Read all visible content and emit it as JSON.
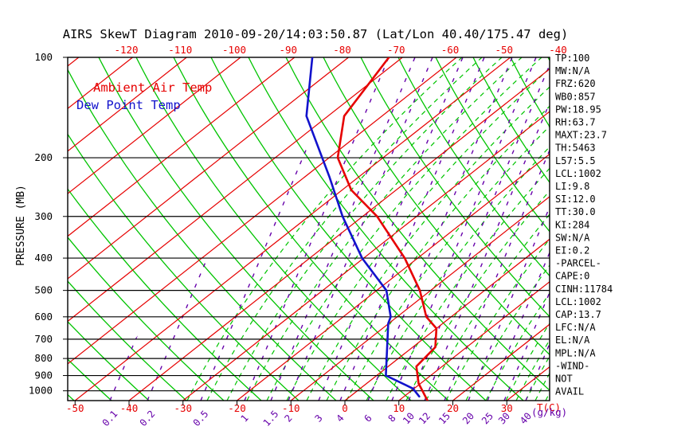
{
  "title": "AIRS SkewT Diagram 2010-09-20/14:03:50.87 (Lat/Lon 40.40/175.47 deg)",
  "legend": {
    "ambient_label": "Ambient Air Temp",
    "dewpoint_label": "Dew Point Temp"
  },
  "axes": {
    "pressure_label": "PRESSURE (MB)",
    "pressure_ticks": [
      100,
      200,
      300,
      400,
      500,
      600,
      700,
      800,
      900,
      1000
    ],
    "temp_unit_label": "T(C)",
    "mixing_unit_label": "(g/kg)",
    "top_temp_ticks": [
      -120,
      -110,
      -100,
      -90,
      -80,
      -70,
      -60,
      -50,
      -40
    ],
    "bottom_temp_ticks": [
      -50,
      -40,
      -30,
      -20,
      -10,
      0,
      10,
      20,
      30
    ],
    "mixing_ratio_ticks": [
      0.1,
      0.2,
      0.5,
      1,
      1.5,
      2,
      3,
      4,
      6,
      8,
      10,
      12,
      15,
      20,
      25,
      30,
      40
    ]
  },
  "stats": [
    "TP:100",
    "MW:N/A",
    "FRZ:620",
    "WB0:857",
    "PW:18.95",
    "RH:63.7",
    "MAXT:23.7",
    "TH:5463",
    "L57:5.5",
    "LCL:1002",
    "LI:9.8",
    "SI:12.0",
    "TT:30.0",
    "KI:284",
    "SW:N/A",
    "EI:0.2",
    "-PARCEL-",
    "CAPE:0",
    "CINH:11784",
    "LCL:1002",
    "CAP:13.7",
    "LFC:N/A",
    "EL:N/A",
    "MPL:N/A",
    "-WIND-",
    "NOT",
    "AVAIL"
  ],
  "colors": {
    "isotherm_red": "#e60000",
    "adiabat_green": "#00c400",
    "mixing_purple": "#6600aa",
    "ambient_red": "#e60000",
    "dewpoint_blue": "#1212cc",
    "axis_black": "#000000",
    "background": "#ffffff"
  },
  "chart_data": {
    "type": "line",
    "title": "AIRS SkewT Diagram 2010-09-20/14:03:50.87 (Lat/Lon 40.40/175.47 deg)",
    "projection": "skew-T log-P",
    "y_axis": {
      "label": "PRESSURE (MB)",
      "scale": "log",
      "range": [
        100,
        1070
      ],
      "ticks": [
        100,
        200,
        300,
        400,
        500,
        600,
        700,
        800,
        900,
        1000
      ]
    },
    "x_axis": {
      "label": "T(C)",
      "top_ticks": [
        -120,
        -110,
        -100,
        -90,
        -80,
        -70,
        -60,
        -50,
        -40
      ],
      "bottom_ticks": [
        -50,
        -40,
        -30,
        -20,
        -10,
        0,
        10,
        20,
        30
      ]
    },
    "mixing_ratio_lines_gkg": [
      0.1,
      0.2,
      0.5,
      1,
      1.5,
      2,
      3,
      4,
      6,
      8,
      10,
      12,
      15,
      20,
      25,
      30,
      40
    ],
    "isotherm_step_c": 10,
    "series": [
      {
        "name": "Ambient Air Temp",
        "color": "#e60000",
        "units": [
          "hPa",
          "degC"
        ],
        "points": [
          [
            100,
            -72.5
          ],
          [
            150,
            -67.0
          ],
          [
            200,
            -58.4
          ],
          [
            250,
            -48.3
          ],
          [
            300,
            -37.3
          ],
          [
            400,
            -22.4
          ],
          [
            500,
            -12.0
          ],
          [
            600,
            -4.6
          ],
          [
            650,
            0.0
          ],
          [
            740,
            4.2
          ],
          [
            845,
            5.2
          ],
          [
            950,
            9.6
          ],
          [
            1070,
            15.3
          ]
        ]
      },
      {
        "name": "Dew Point Temp",
        "color": "#1212cc",
        "units": [
          "hPa",
          "degC"
        ],
        "points": [
          [
            100,
            -86.7
          ],
          [
            150,
            -74.0
          ],
          [
            228,
            -55.5
          ],
          [
            300,
            -43.7
          ],
          [
            400,
            -30.3
          ],
          [
            500,
            -18.2
          ],
          [
            600,
            -11.2
          ],
          [
            628,
            -10.1
          ],
          [
            900,
            1.7
          ],
          [
            985,
            9.8
          ],
          [
            1040,
            12.8
          ]
        ]
      }
    ]
  }
}
